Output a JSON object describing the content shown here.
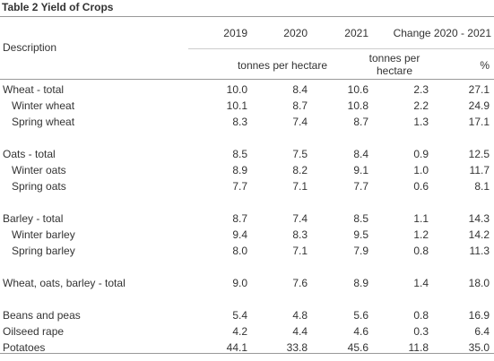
{
  "title": "Table 2 Yield of Crops",
  "header": {
    "description": "Description",
    "years": [
      "2019",
      "2020",
      "2021"
    ],
    "change": "Change 2020 - 2021",
    "unit_main": "tonnes per hectare",
    "unit_change_line1": "tonnes per",
    "unit_change_line2": "hectare",
    "unit_percent": "%"
  },
  "rows": [
    {
      "label": "Wheat - total",
      "v2019": "10.0",
      "v2020": "8.4",
      "v2021": "10.6",
      "change": "2.3",
      "pct": "27.1"
    },
    {
      "label": "Winter wheat",
      "v2019": "10.1",
      "v2020": "8.7",
      "v2021": "10.8",
      "change": "2.2",
      "pct": "24.9"
    },
    {
      "label": "Spring wheat",
      "v2019": "8.3",
      "v2020": "7.4",
      "v2021": "8.7",
      "change": "1.3",
      "pct": "17.1"
    },
    {
      "label": "Oats - total",
      "v2019": "8.5",
      "v2020": "7.5",
      "v2021": "8.4",
      "change": "0.9",
      "pct": "12.5"
    },
    {
      "label": "Winter oats",
      "v2019": "8.9",
      "v2020": "8.2",
      "v2021": "9.1",
      "change": "1.0",
      "pct": "11.7"
    },
    {
      "label": "Spring oats",
      "v2019": "7.7",
      "v2020": "7.1",
      "v2021": "7.7",
      "change": "0.6",
      "pct": "8.1"
    },
    {
      "label": "Barley - total",
      "v2019": "8.7",
      "v2020": "7.4",
      "v2021": "8.5",
      "change": "1.1",
      "pct": "14.3"
    },
    {
      "label": "Winter barley",
      "v2019": "9.4",
      "v2020": "8.3",
      "v2021": "9.5",
      "change": "1.2",
      "pct": "14.2"
    },
    {
      "label": "Spring barley",
      "v2019": "8.0",
      "v2020": "7.1",
      "v2021": "7.9",
      "change": "0.8",
      "pct": "11.3"
    },
    {
      "label": "Wheat, oats, barley - total",
      "v2019": "9.0",
      "v2020": "7.6",
      "v2021": "8.9",
      "change": "1.4",
      "pct": "18.0"
    },
    {
      "label": "Beans and peas",
      "v2019": "5.4",
      "v2020": "4.8",
      "v2021": "5.6",
      "change": "0.8",
      "pct": "16.9"
    },
    {
      "label": "Oilseed rape",
      "v2019": "4.2",
      "v2020": "4.4",
      "v2021": "4.6",
      "change": "0.3",
      "pct": "6.4"
    },
    {
      "label": "Potatoes",
      "v2019": "44.1",
      "v2020": "33.8",
      "v2021": "45.6",
      "change": "11.8",
      "pct": "35.0"
    }
  ]
}
